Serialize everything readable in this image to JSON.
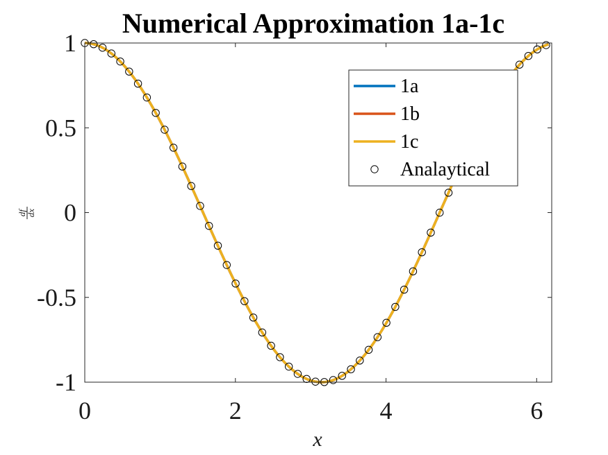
{
  "chart_data": {
    "type": "line",
    "title": "Numerical Approximation 1a-1c",
    "xlabel": "x",
    "ylabel_numerator": "df",
    "ylabel_denominator": "dx",
    "xlim": [
      0,
      6.2
    ],
    "ylim": [
      -1,
      1
    ],
    "xticks": [
      0,
      2,
      4,
      6
    ],
    "xtick_labels": [
      "0",
      "2",
      "4",
      "6"
    ],
    "yticks": [
      -1,
      -0.5,
      0,
      0.5,
      1
    ],
    "ytick_labels": [
      "-1",
      "-0.5",
      "0",
      "0.5",
      "1"
    ],
    "grid": false,
    "legend_position": "top-right",
    "series": [
      {
        "name": "1a",
        "color": "#0072BD",
        "style": "line",
        "function": "cos",
        "x_start": 0,
        "x_end": 6.1575,
        "x_step": 0.1178
      },
      {
        "name": "1b",
        "color": "#D95319",
        "style": "line",
        "function": "cos",
        "x_start": 0,
        "x_end": 6.1575,
        "x_step": 0.1178
      },
      {
        "name": "1c",
        "color": "#EDB120",
        "style": "line",
        "function": "cos",
        "x_start": 0,
        "x_end": 6.1575,
        "x_step": 0.1178
      },
      {
        "name": "Analaytical",
        "color": "#000000",
        "style": "markers",
        "marker": "circle",
        "function": "cos",
        "x_start": 0,
        "x_end": 6.1575,
        "x_step": 0.1178
      }
    ]
  }
}
